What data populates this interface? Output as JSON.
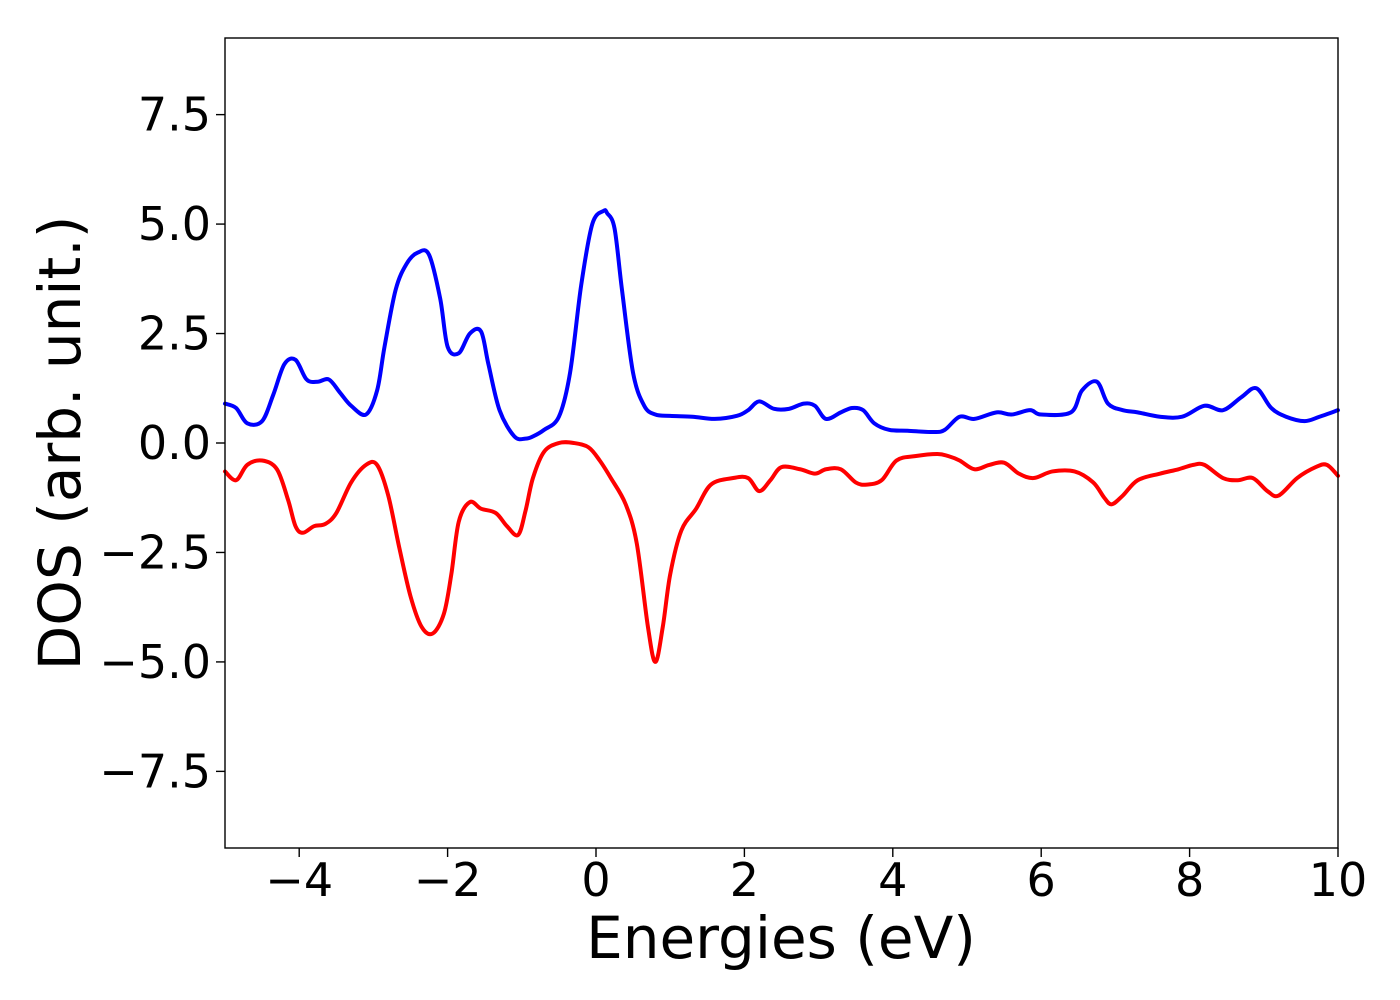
{
  "chart_data": {
    "type": "line",
    "title": "",
    "xlabel": "Energies (eV)",
    "ylabel": "DOS (arb. unit.)",
    "xlim": [
      -5,
      10
    ],
    "ylim": [
      -9.25,
      9.25
    ],
    "xticks": [
      -4,
      -2,
      0,
      2,
      4,
      6,
      8,
      10
    ],
    "xtick_labels": [
      "−4",
      "−2",
      "0",
      "2",
      "4",
      "6",
      "8",
      "10"
    ],
    "yticks": [
      -7.5,
      -5.0,
      -2.5,
      0.0,
      2.5,
      5.0,
      7.5
    ],
    "ytick_labels": [
      "−7.5",
      "−5.0",
      "−2.5",
      "0.0",
      "2.5",
      "5.0",
      "7.5"
    ],
    "grid": false,
    "series": [
      {
        "color": "#0000ff",
        "x": [
          -5.0,
          -4.85,
          -4.7,
          -4.5,
          -4.35,
          -4.2,
          -4.05,
          -3.9,
          -3.75,
          -3.6,
          -3.45,
          -3.3,
          -3.1,
          -2.95,
          -2.85,
          -2.7,
          -2.55,
          -2.4,
          -2.25,
          -2.1,
          -2.0,
          -1.85,
          -1.7,
          -1.55,
          -1.45,
          -1.3,
          -1.1,
          -0.95,
          -0.85,
          -0.7,
          -0.5,
          -0.35,
          -0.2,
          -0.05,
          0.1,
          0.15,
          0.25,
          0.35,
          0.5,
          0.65,
          0.8,
          1.0,
          1.3,
          1.6,
          1.9,
          2.05,
          2.2,
          2.4,
          2.6,
          2.8,
          2.95,
          3.1,
          3.3,
          3.45,
          3.6,
          3.75,
          3.95,
          4.2,
          4.55,
          4.7,
          4.9,
          5.1,
          5.4,
          5.6,
          5.85,
          6.0,
          6.4,
          6.55,
          6.75,
          6.9,
          7.1,
          7.3,
          7.6,
          7.9,
          8.2,
          8.45,
          8.7,
          8.9,
          9.1,
          9.3,
          9.55,
          9.75,
          10.0
        ],
        "y": [
          0.9,
          0.8,
          0.45,
          0.5,
          1.1,
          1.8,
          1.9,
          1.45,
          1.4,
          1.45,
          1.15,
          0.85,
          0.65,
          1.2,
          2.2,
          3.5,
          4.1,
          4.35,
          4.3,
          3.3,
          2.2,
          2.05,
          2.5,
          2.55,
          1.8,
          0.75,
          0.15,
          0.1,
          0.15,
          0.3,
          0.6,
          1.6,
          3.6,
          5.0,
          5.3,
          5.25,
          4.9,
          3.5,
          1.6,
          0.85,
          0.65,
          0.62,
          0.6,
          0.55,
          0.62,
          0.75,
          0.95,
          0.78,
          0.78,
          0.9,
          0.85,
          0.55,
          0.7,
          0.8,
          0.75,
          0.45,
          0.3,
          0.28,
          0.25,
          0.3,
          0.6,
          0.55,
          0.7,
          0.65,
          0.75,
          0.65,
          0.7,
          1.2,
          1.4,
          0.9,
          0.75,
          0.7,
          0.6,
          0.6,
          0.85,
          0.75,
          1.05,
          1.25,
          0.8,
          0.6,
          0.5,
          0.6,
          0.75
        ]
      },
      {
        "color": "#ff0000",
        "x": [
          -5.0,
          -4.85,
          -4.7,
          -4.5,
          -4.3,
          -4.15,
          -4.05,
          -3.95,
          -3.8,
          -3.65,
          -3.5,
          -3.3,
          -3.1,
          -2.95,
          -2.8,
          -2.65,
          -2.5,
          -2.35,
          -2.2,
          -2.05,
          -1.95,
          -1.85,
          -1.7,
          -1.55,
          -1.35,
          -1.2,
          -1.05,
          -0.95,
          -0.85,
          -0.7,
          -0.5,
          -0.3,
          -0.1,
          0.05,
          0.2,
          0.4,
          0.55,
          0.7,
          0.8,
          0.9,
          1.0,
          1.15,
          1.35,
          1.55,
          1.85,
          2.05,
          2.2,
          2.35,
          2.5,
          2.75,
          2.95,
          3.1,
          3.3,
          3.5,
          3.65,
          3.85,
          4.05,
          4.3,
          4.6,
          4.75,
          4.9,
          5.1,
          5.3,
          5.5,
          5.7,
          5.9,
          6.15,
          6.45,
          6.7,
          6.85,
          6.95,
          7.1,
          7.3,
          7.6,
          7.85,
          8.05,
          8.2,
          8.45,
          8.65,
          8.85,
          9.05,
          9.2,
          9.45,
          9.7,
          9.85,
          10.0
        ],
        "y": [
          -0.65,
          -0.85,
          -0.5,
          -0.4,
          -0.6,
          -1.3,
          -1.9,
          -2.05,
          -1.9,
          -1.85,
          -1.6,
          -0.9,
          -0.5,
          -0.5,
          -1.2,
          -2.4,
          -3.5,
          -4.2,
          -4.35,
          -3.9,
          -3.0,
          -1.8,
          -1.35,
          -1.5,
          -1.6,
          -1.9,
          -2.1,
          -1.55,
          -0.8,
          -0.2,
          0.0,
          0.0,
          -0.1,
          -0.4,
          -0.8,
          -1.4,
          -2.3,
          -4.2,
          -5.0,
          -4.2,
          -3.0,
          -2.0,
          -1.5,
          -0.95,
          -0.8,
          -0.8,
          -1.1,
          -0.85,
          -0.55,
          -0.6,
          -0.7,
          -0.6,
          -0.6,
          -0.9,
          -0.95,
          -0.85,
          -0.4,
          -0.3,
          -0.25,
          -0.3,
          -0.4,
          -0.6,
          -0.5,
          -0.45,
          -0.7,
          -0.8,
          -0.65,
          -0.65,
          -0.9,
          -1.25,
          -1.4,
          -1.2,
          -0.85,
          -0.7,
          -0.6,
          -0.5,
          -0.5,
          -0.8,
          -0.85,
          -0.8,
          -1.1,
          -1.2,
          -0.8,
          -0.55,
          -0.5,
          -0.75
        ]
      }
    ]
  }
}
